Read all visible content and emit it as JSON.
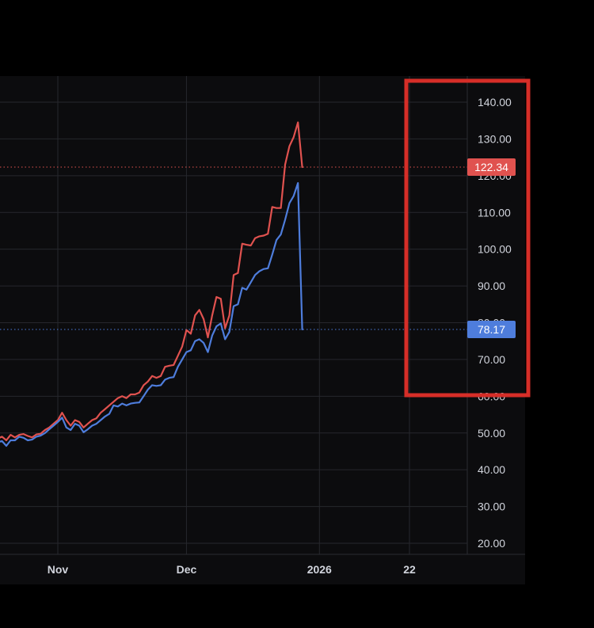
{
  "chart_data": {
    "type": "line",
    "title": "",
    "xlabel": "",
    "ylabel": "",
    "x_tick_labels": [
      "Nov",
      "Dec",
      "2026",
      "22"
    ],
    "y_ticks": [
      "20.00",
      "30.00",
      "40.00",
      "50.00",
      "60.00",
      "70.00",
      "80.00",
      "90.00",
      "100.00",
      "110.00",
      "120.00",
      "130.00",
      "140.00"
    ],
    "ylim": [
      16,
      148
    ],
    "grid": true,
    "series": [
      {
        "color": "#e0524f",
        "last_value_label": "122.34",
        "last_value": 122.34,
        "values": [
          50.5,
          49,
          49.5,
          48.5,
          49,
          48,
          49.5,
          48.8,
          49.5,
          49.7,
          49.2,
          48.8,
          49.6,
          49.8,
          50.8,
          51.5,
          52.5,
          53.5,
          55.5,
          53.5,
          52,
          53.5,
          53,
          51.5,
          52.5,
          53.5,
          54,
          55.5,
          56.5,
          57.5,
          58.5,
          59.5,
          60,
          59.5,
          60.5,
          60.5,
          61,
          63,
          64,
          65.5,
          65,
          65.5,
          68,
          68.3,
          68.5,
          71,
          73.5,
          78,
          77,
          82,
          83.5,
          81,
          76,
          82,
          87,
          86.5,
          78.5,
          82,
          93,
          93.5,
          101.5,
          101.2,
          101,
          103,
          103.5,
          103.7,
          104.2,
          111.5,
          111.2,
          111.2,
          123,
          128,
          130.5,
          134.5,
          122.34
        ]
      },
      {
        "color": "#4e7ddc",
        "last_value_label": "78.17",
        "last_value": 78.17,
        "values": [
          49.5,
          48,
          48.5,
          47.5,
          47.8,
          46.5,
          48,
          48,
          49,
          48.7,
          48,
          48.2,
          49,
          49.3,
          50,
          51,
          52,
          53,
          54.2,
          51.5,
          50.8,
          52.5,
          52,
          50.2,
          51,
          52,
          52.5,
          53.5,
          54.5,
          55.2,
          57.5,
          57.2,
          58,
          57.5,
          58,
          58.2,
          58.3,
          60,
          61.8,
          63,
          62.8,
          63,
          64.5,
          65,
          65.2,
          68,
          70,
          72,
          72.5,
          75,
          75.5,
          74.5,
          72,
          76.5,
          79,
          79.8,
          75.5,
          77.5,
          84.5,
          85,
          89.5,
          89,
          91,
          93,
          94,
          94.6,
          94.8,
          98.5,
          102.5,
          104,
          108,
          112.5,
          114.5,
          118,
          78.17
        ]
      }
    ]
  },
  "dates": {
    "start": "2025-10-15",
    "tick_dates": [
      "2025-11-01",
      "2025-12-01",
      "2026-01-01",
      "2026-01-22"
    ]
  },
  "colors": {
    "background": "#0c0c0e",
    "grid": "#26272d",
    "highlight_box": "#d62e28"
  }
}
